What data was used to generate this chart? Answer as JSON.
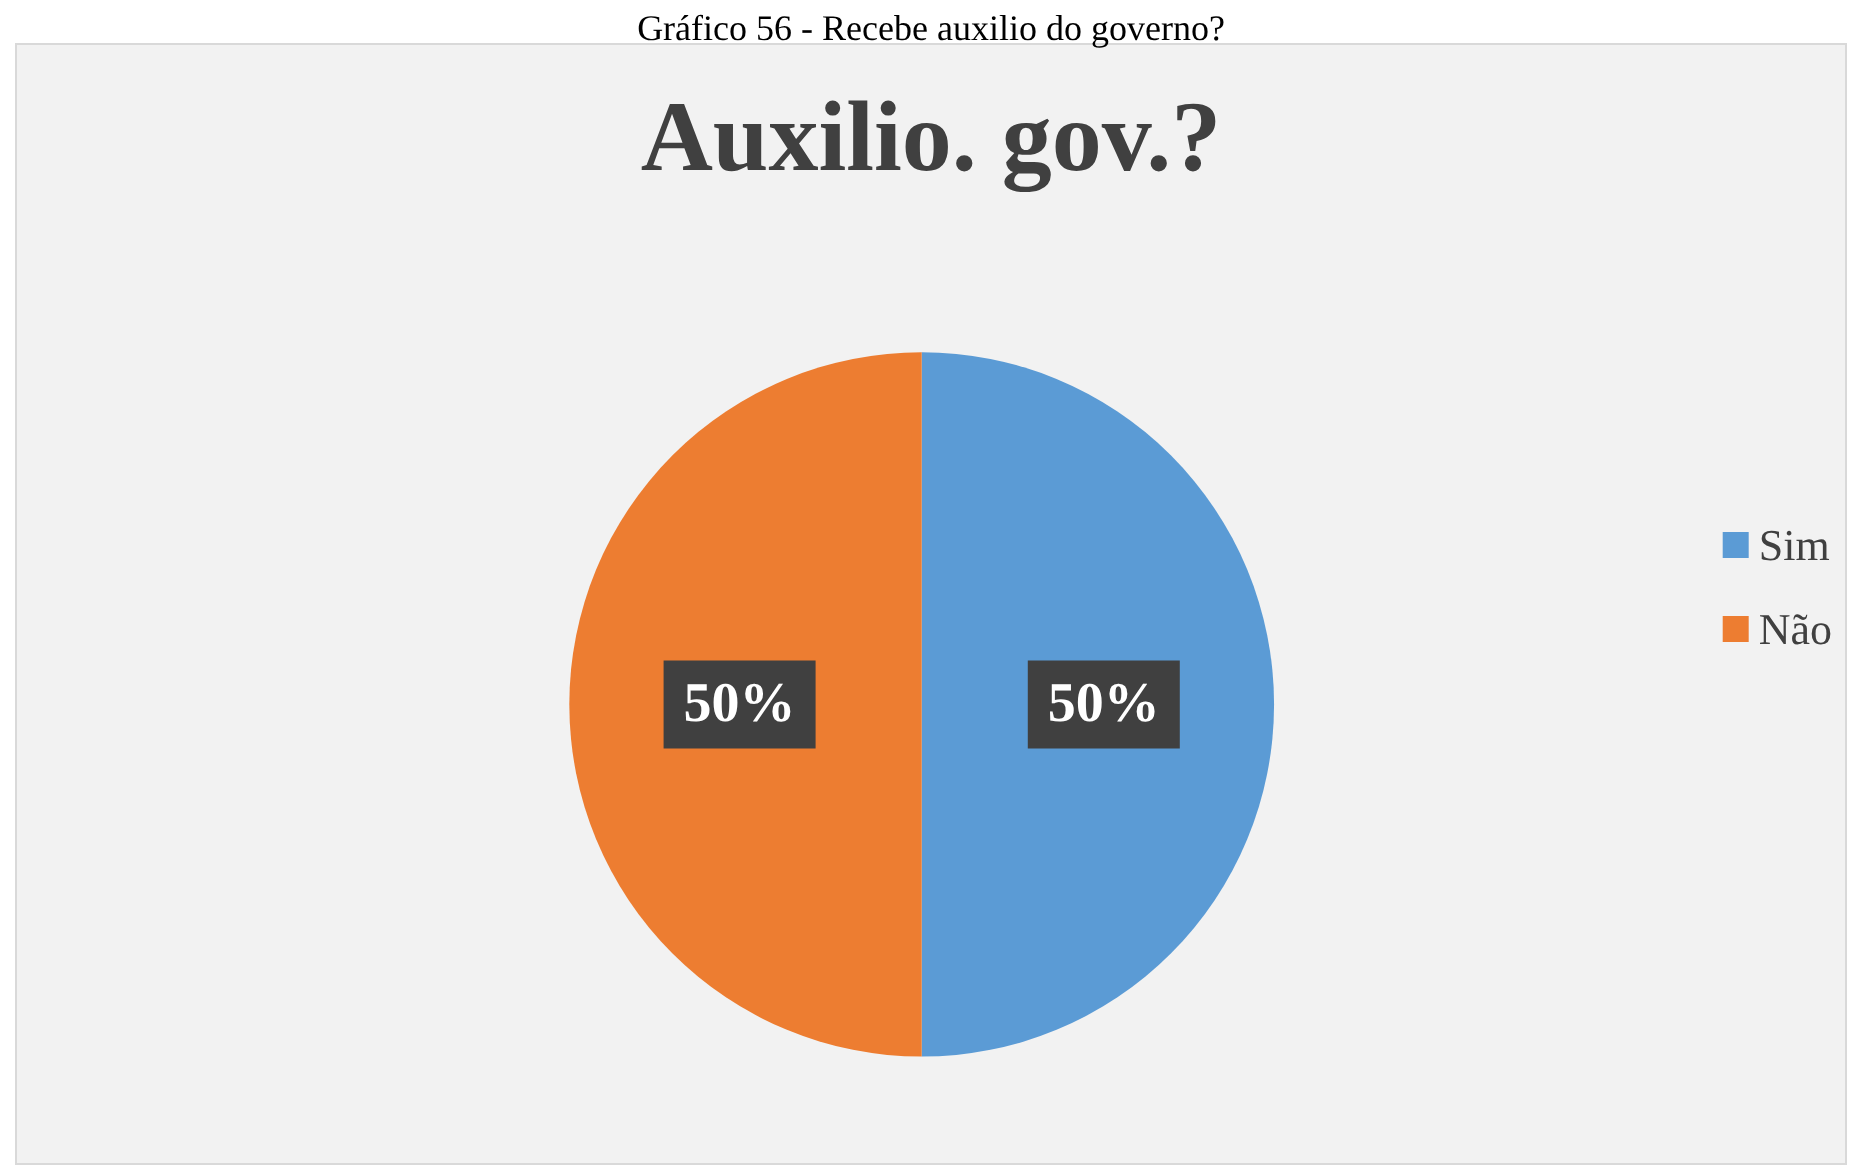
{
  "chart_data": {
    "type": "pie",
    "title": "Auxilio. gov.?",
    "annotations": [
      "Gráfico 56 - Recebe auxilio do governo?"
    ],
    "categories": [
      "Sim",
      "Não"
    ],
    "values": [
      50,
      50
    ],
    "colors": [
      "#5b9bd5",
      "#ed7d31"
    ],
    "value_labels": [
      "50%",
      "50%"
    ],
    "legend": "right"
  }
}
